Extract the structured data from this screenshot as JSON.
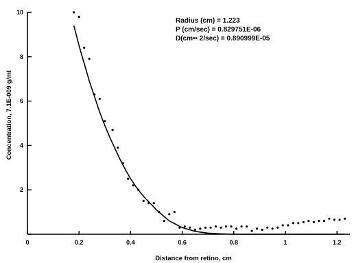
{
  "chart_data": {
    "type": "scatter",
    "xlabel": "Distance  from retino,    cm",
    "ylabel": "Concentration,    7.1E-009 g/ml",
    "xlim": [
      0,
      1.25
    ],
    "ylim": [
      0,
      10
    ],
    "x_ticks": [
      "0",
      "0.2",
      "0.4",
      "0.6",
      "0.8",
      "1",
      "1.2"
    ],
    "y_ticks": [
      "0",
      "2",
      "4",
      "6",
      "8",
      "10"
    ],
    "annotations": [
      "Radius (cm) = 1.223",
      "P (cm/sec)   = 0.829751E-06",
      "D(cm•• 2/sec)  =  0.890999E-05"
    ],
    "series": [
      {
        "kind": "points",
        "x": [
          0.18,
          0.2,
          0.22,
          0.24,
          0.26,
          0.28,
          0.3,
          0.33,
          0.35,
          0.37,
          0.39,
          0.41,
          0.43,
          0.45,
          0.47,
          0.49,
          0.51,
          0.53,
          0.55,
          0.57,
          0.59,
          0.61,
          0.63,
          0.65,
          0.67,
          0.69,
          0.71,
          0.73,
          0.75,
          0.77,
          0.79,
          0.81,
          0.83,
          0.85,
          0.87,
          0.89,
          0.91,
          0.93,
          0.95,
          0.97,
          0.99,
          1.01,
          1.03,
          1.05,
          1.07,
          1.09,
          1.11,
          1.13,
          1.15,
          1.17,
          1.19,
          1.21,
          1.23
        ],
        "y": [
          10.0,
          9.8,
          8.4,
          7.9,
          6.3,
          6.1,
          5.1,
          4.7,
          3.9,
          3.2,
          2.5,
          2.2,
          2.0,
          1.5,
          1.4,
          1.4,
          1.0,
          0.6,
          0.9,
          1.0,
          0.3,
          0.35,
          0.3,
          0.2,
          0.25,
          0.3,
          0.3,
          0.35,
          0.3,
          0.35,
          0.35,
          0.25,
          0.35,
          0.35,
          0.15,
          0.25,
          0.2,
          0.3,
          0.25,
          0.3,
          0.4,
          0.4,
          0.5,
          0.5,
          0.55,
          0.6,
          0.55,
          0.6,
          0.6,
          0.7,
          0.65,
          0.65,
          0.7
        ]
      },
      {
        "kind": "fit",
        "x": [
          0.18,
          0.2,
          0.22,
          0.24,
          0.26,
          0.28,
          0.3,
          0.32,
          0.34,
          0.36,
          0.38,
          0.4,
          0.42,
          0.44,
          0.46,
          0.48,
          0.5,
          0.55,
          0.6,
          0.65,
          0.7,
          0.75,
          0.8,
          0.85,
          0.9,
          0.95,
          1.0,
          1.05,
          1.1,
          1.15,
          1.2,
          1.23
        ],
        "y": [
          9.4,
          8.5,
          7.7,
          6.9,
          6.2,
          5.5,
          4.9,
          4.35,
          3.85,
          3.35,
          2.9,
          2.5,
          2.15,
          1.85,
          1.58,
          1.35,
          1.1,
          0.6,
          0.3,
          0.13,
          0.05,
          0.02,
          0.0,
          0.0,
          0.0,
          0.0,
          0.0,
          0.0,
          0.0,
          0.0,
          0.0,
          0.0
        ]
      }
    ]
  }
}
